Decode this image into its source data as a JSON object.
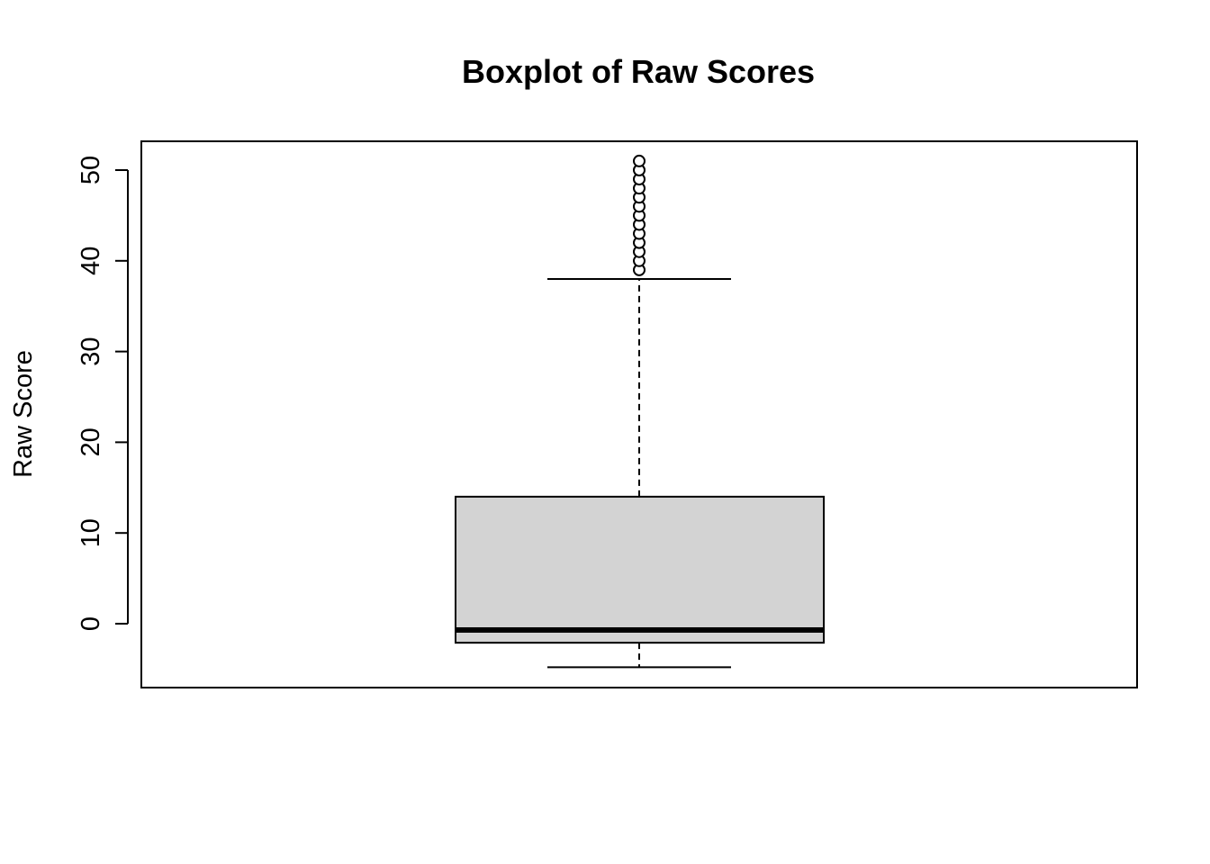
{
  "chart_data": {
    "type": "boxplot",
    "title": "Boxplot of Raw Scores",
    "xlabel": "",
    "ylabel": "Raw Score",
    "ylim": [
      -7,
      53
    ],
    "yticks": [
      0,
      10,
      20,
      30,
      40,
      50
    ],
    "ytick_labels": [
      "0",
      "10",
      "20",
      "30",
      "40",
      "50"
    ],
    "box": {
      "whisker_low": -4.8,
      "q1": -2.1,
      "median": -0.7,
      "q3": 14,
      "whisker_high": 38
    },
    "outliers": [
      39,
      40,
      41,
      42,
      43,
      44,
      45,
      46,
      47,
      48,
      49,
      50,
      51
    ],
    "box_fill": "#d3d3d3",
    "line_color": "#000000",
    "grid": false
  }
}
